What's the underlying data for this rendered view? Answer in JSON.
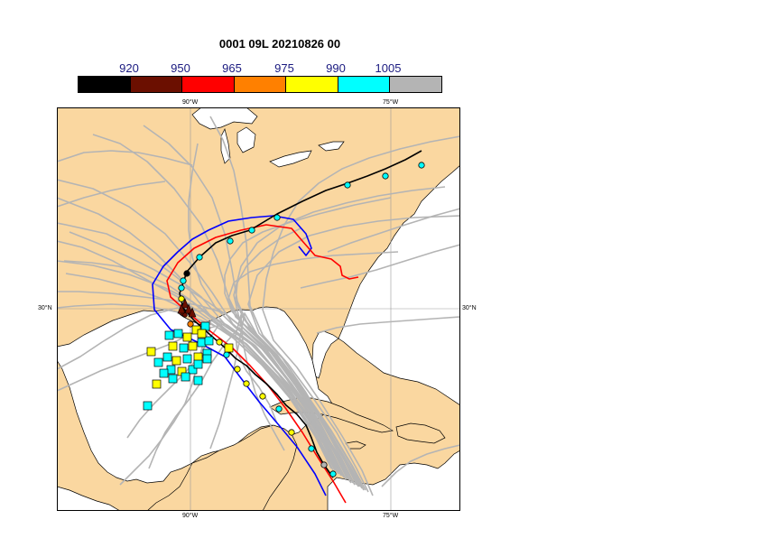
{
  "title": "0001 09L 20210826 00",
  "colorbar": {
    "labels": [
      "920",
      "950",
      "965",
      "975",
      "990",
      "1005"
    ],
    "colors": [
      "#000000",
      "#6b0f00",
      "#ff0000",
      "#ff8000",
      "#ffff00",
      "#00ffff",
      "#b4b4b4"
    ]
  },
  "grid_labels": {
    "lon_90": "90°W",
    "lon_75": "75°W",
    "lat_30": "30°N"
  },
  "colors": {
    "land": "#fad7a0",
    "ocean": "#ffffff",
    "ensemble": "#b4b4b4",
    "official_track": "#000000",
    "model_red": "#ff0000",
    "model_blue": "#0000ff",
    "marker_cyan": "#00ffff",
    "marker_yellow": "#ffff00"
  }
}
